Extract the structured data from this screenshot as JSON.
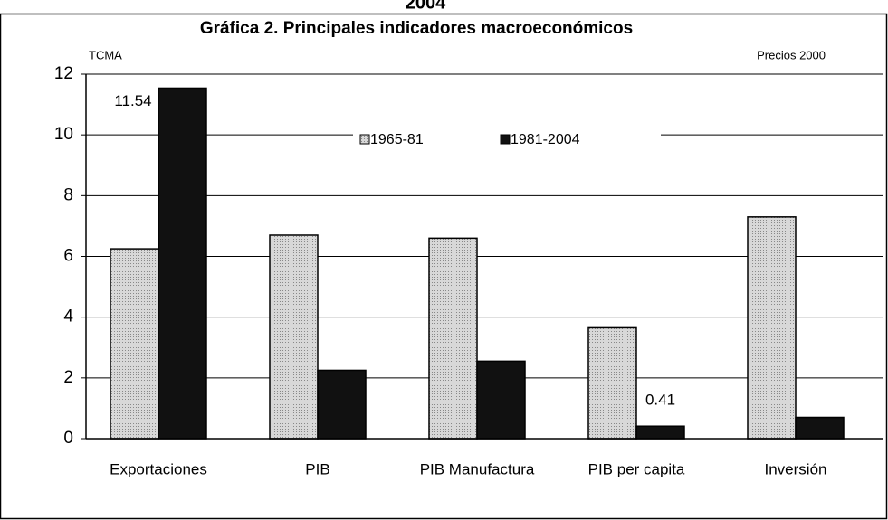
{
  "chart_data": {
    "type": "bar",
    "title_fragment": "2004",
    "title": "Gráfica 2. Principales indicadores macroeconómicos",
    "y_axis_label": "TCMA",
    "note": "Precios 2000",
    "categories": [
      "Exportaciones",
      "PIB",
      "PIB Manufactura",
      "PIB per capita",
      "Inversión"
    ],
    "series": [
      {
        "name": "1965-81",
        "color": "#c8c8c8",
        "values": [
          6.25,
          6.7,
          6.6,
          3.65,
          7.3
        ]
      },
      {
        "name": "1981-2004",
        "color": "#111111",
        "values": [
          11.54,
          2.25,
          2.55,
          0.41,
          0.7
        ],
        "value_labels": [
          "11.54",
          null,
          null,
          "0.41",
          null
        ]
      }
    ],
    "ylim": [
      0,
      12
    ],
    "yticks": [
      0,
      2,
      4,
      6,
      8,
      10,
      12
    ],
    "grid": true,
    "legend": "top"
  }
}
